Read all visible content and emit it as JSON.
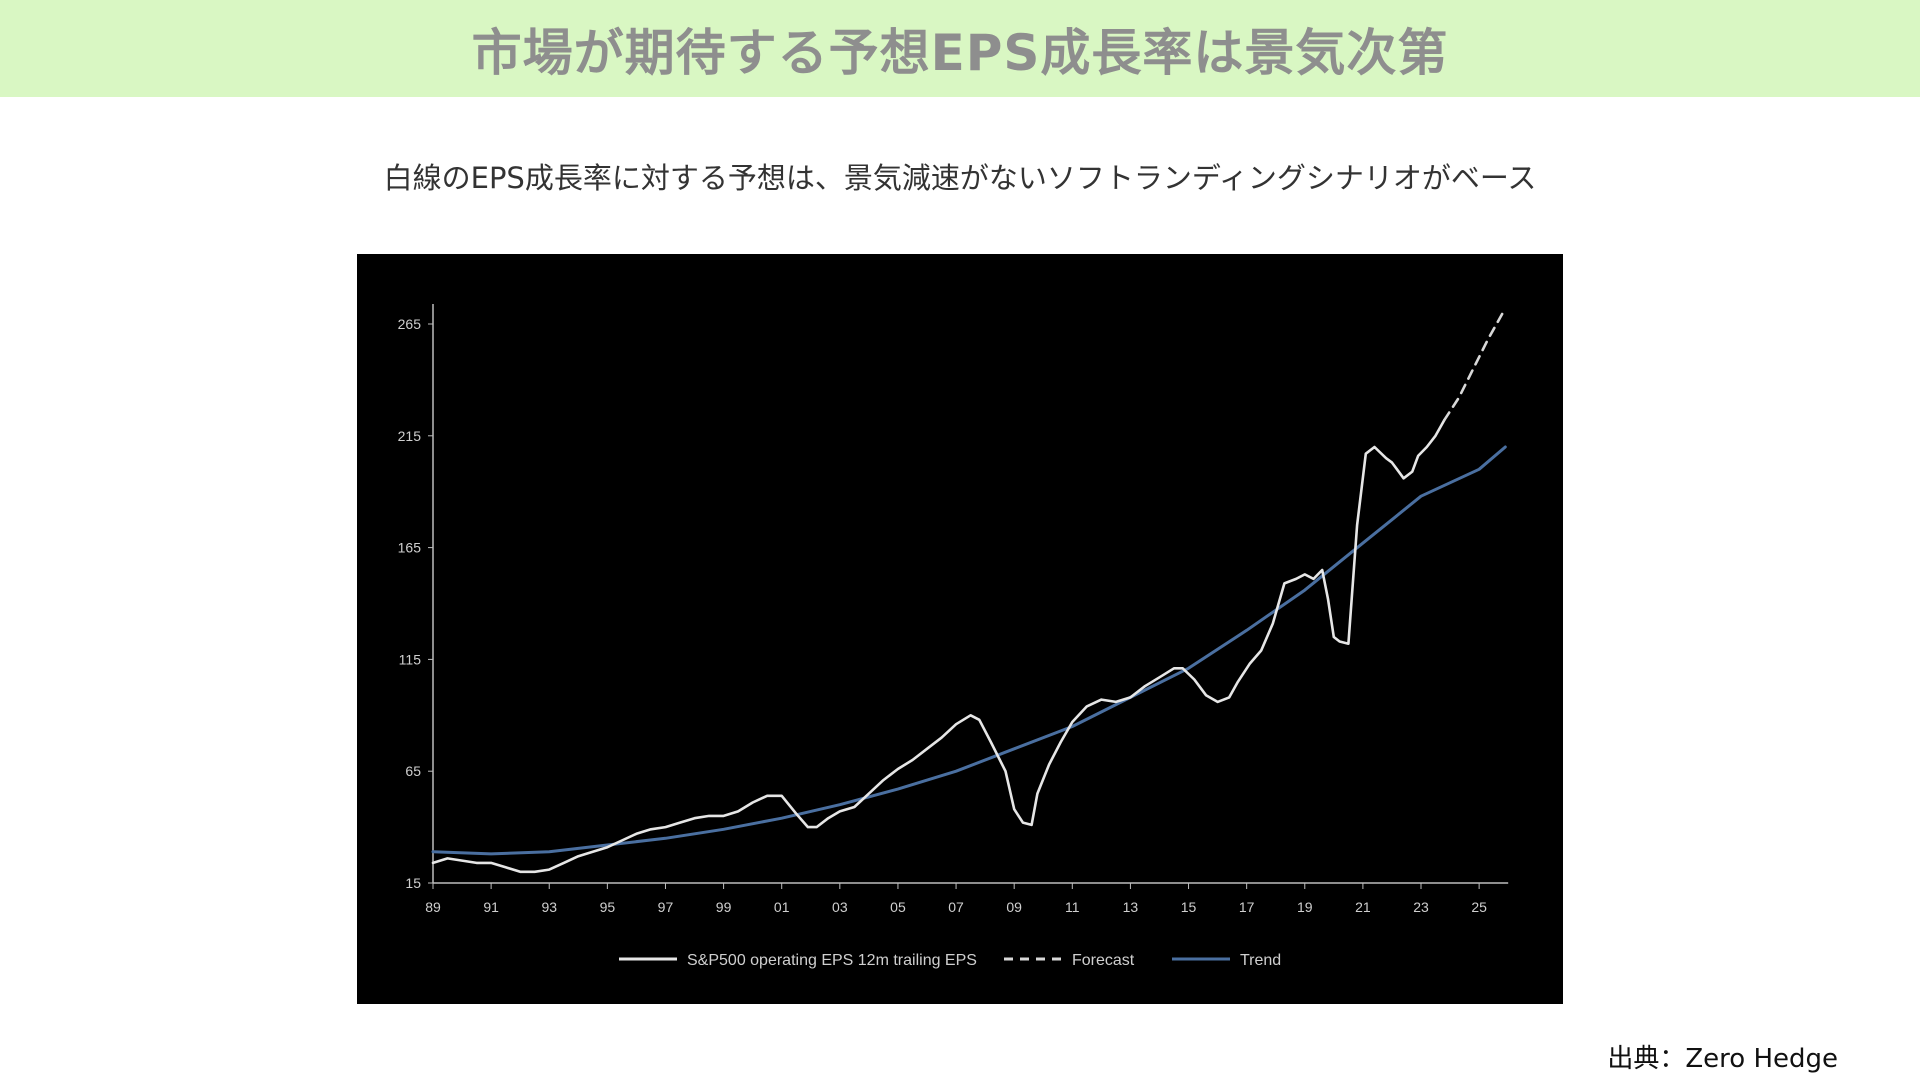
{
  "header": {
    "title": "市場が期待する予想EPS成長率は景気次第",
    "subtitle": "白線のEPS成長率に対する予想は、景気減速がないソフトランディングシナリオがベース"
  },
  "source": "出典：Zero Hedge",
  "chart_data": {
    "type": "line",
    "ylim": [
      15,
      275
    ],
    "xlim": [
      1989,
      2026
    ],
    "y_ticks": [
      "15",
      "65",
      "115",
      "165",
      "215",
      "265"
    ],
    "x_ticks": [
      "89",
      "91",
      "93",
      "95",
      "97",
      "99",
      "01",
      "03",
      "05",
      "07",
      "09",
      "11",
      "13",
      "15",
      "17",
      "19",
      "21",
      "23",
      "25"
    ],
    "grid": false,
    "legend_position": "bottom",
    "colors": {
      "actual": "#e6e6e6",
      "forecast": "#d8d8d8",
      "trend": "#4a6fa0"
    },
    "series": [
      {
        "name": "S&P500 operating EPS 12m trailing EPS",
        "style": "solid",
        "x": [
          1989.0,
          1989.5,
          1990.0,
          1990.5,
          1991.0,
          1991.5,
          1992.0,
          1992.5,
          1993.0,
          1993.5,
          1994.0,
          1994.5,
          1995.0,
          1995.5,
          1996.0,
          1996.5,
          1997.0,
          1997.5,
          1998.0,
          1998.5,
          1999.0,
          1999.5,
          2000.0,
          2000.5,
          2001.0,
          2001.5,
          2001.9,
          2002.2,
          2002.6,
          2003.0,
          2003.5,
          2004.0,
          2004.5,
          2005.0,
          2005.5,
          2006.0,
          2006.5,
          2007.0,
          2007.5,
          2007.8,
          2008.2,
          2008.7,
          2009.0,
          2009.3,
          2009.6,
          2009.8,
          2010.2,
          2010.6,
          2011.0,
          2011.5,
          2012.0,
          2012.5,
          2013.0,
          2013.5,
          2014.0,
          2014.5,
          2014.8,
          2015.2,
          2015.6,
          2016.0,
          2016.4,
          2016.7,
          2017.1,
          2017.5,
          2017.9,
          2018.3,
          2018.7,
          2019.0,
          2019.3,
          2019.6,
          2019.8,
          2020.0,
          2020.2,
          2020.5,
          2020.8,
          2021.1,
          2021.4,
          2021.8,
          2022.0,
          2022.4,
          2022.7,
          2022.9,
          2023.2,
          2023.5,
          2023.8
        ],
        "y": [
          24,
          26,
          25,
          24,
          24,
          22,
          20,
          20,
          21,
          24,
          27,
          29,
          31,
          34,
          37,
          39,
          40,
          42,
          44,
          45,
          45,
          47,
          51,
          54,
          54,
          46,
          40,
          40,
          44,
          47,
          49,
          55,
          61,
          66,
          70,
          75,
          80,
          86,
          90,
          88,
          78,
          65,
          48,
          42,
          41,
          55,
          68,
          78,
          87,
          94,
          97,
          96,
          98,
          103,
          107,
          111,
          111,
          106,
          99,
          96,
          98,
          105,
          113,
          119,
          131,
          149,
          151,
          153,
          151,
          155,
          142,
          125,
          123,
          122,
          175,
          207,
          210,
          205,
          203,
          196,
          199,
          206,
          210,
          215,
          222
        ],
        "data_labels": []
      },
      {
        "name": "Forecast",
        "style": "dashed",
        "x": [
          2023.8,
          2024.3,
          2024.8,
          2025.3,
          2025.9
        ],
        "y": [
          222,
          232,
          245,
          258,
          272
        ]
      },
      {
        "name": "Trend",
        "style": "solid",
        "x": [
          1989,
          1991,
          1993,
          1995,
          1997,
          1999,
          2001,
          2003,
          2005,
          2007,
          2009,
          2011,
          2013,
          2015,
          2017,
          2019,
          2021,
          2023,
          2025,
          2025.9
        ],
        "y": [
          29,
          28,
          29,
          32,
          35,
          39,
          44,
          50,
          57,
          65,
          75,
          85,
          98,
          111,
          128,
          146,
          167,
          188,
          200,
          210
        ]
      }
    ]
  }
}
